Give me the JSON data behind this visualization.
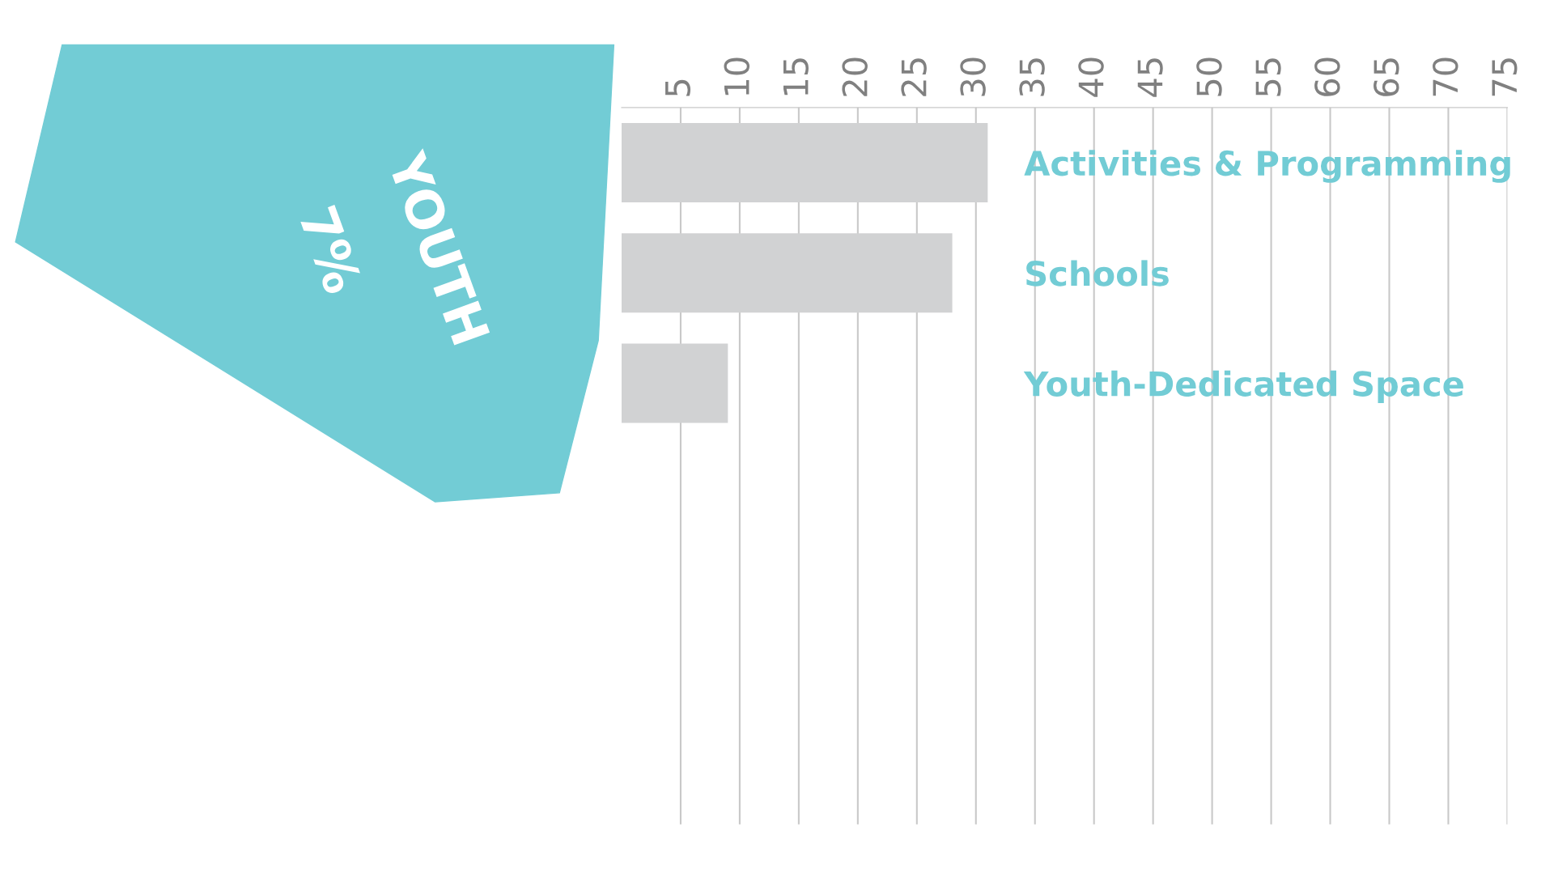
{
  "chart_data": {
    "type": "bar",
    "orientation": "horizontal",
    "categories": [
      "Activities & Programming",
      "Schools",
      "Youth-Dedicated Space"
    ],
    "values": [
      31,
      28,
      9
    ],
    "color": "#d1d2d3",
    "xlim": [
      0,
      75
    ],
    "xticks": [
      5,
      10,
      15,
      20,
      25,
      30,
      35,
      40,
      45,
      50,
      55,
      60,
      65,
      70,
      75
    ],
    "grid": "x",
    "annotations": [
      "7%",
      "YOUTH"
    ]
  }
}
